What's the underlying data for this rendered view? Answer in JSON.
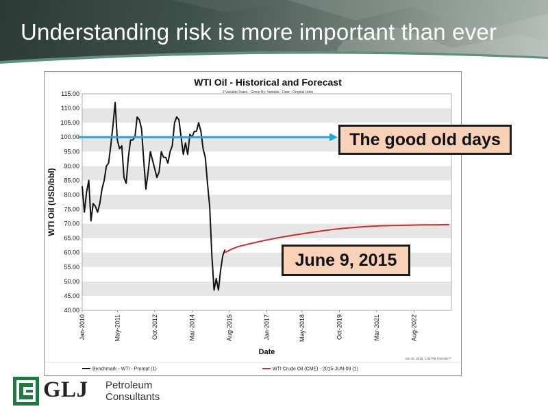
{
  "slide": {
    "title": "Understanding risk is more important than ever"
  },
  "colors": {
    "historical_line": "#111111",
    "forecast_line": "#d32a2a",
    "reference_arrow": "#1da7e6",
    "callout_fill": "#f9d1b7",
    "logo_green": "#1f7a42"
  },
  "callouts": {
    "good_old_days": "The good old days",
    "date": "June 9, 2015"
  },
  "logo": {
    "name": "GLJ",
    "line1": "Petroleum",
    "line2": "Consultants"
  },
  "chart_data": {
    "type": "line",
    "title": "WTI Oil - Historical and Forecast",
    "subtitle": "2 Variable Dates - Group By: Variable - Date - Original Units",
    "xlabel": "Date",
    "ylabel": "WTI Oil (USD/bbl)",
    "ylim": [
      40,
      115
    ],
    "yticks": [
      "40.00",
      "45.00",
      "50.00",
      "55.00",
      "60.00",
      "65.00",
      "70.00",
      "75.00",
      "80.00",
      "85.00",
      "90.00",
      "95.00",
      "100.00",
      "105.00",
      "110.00",
      "115.00"
    ],
    "xlim": [
      "2010-01",
      "2024-01"
    ],
    "xticks": [
      "Jan-2010",
      "May-2011",
      "Oct-2012",
      "Mar-2014",
      "Aug-2015",
      "Jan-2017",
      "May-2018",
      "Oct-2019",
      "Mar-2021",
      "Aug-2022"
    ],
    "grid": "alternating horizontal bands",
    "footnote": "Jun 16, 2015, 1:05 PM  VISAGE™",
    "reference_line": {
      "y": 100,
      "label": "The good old days"
    },
    "legend_position": "bottom",
    "series": [
      {
        "name": "Benchmark - WTI - Prompt  (1)",
        "points": [
          [
            "2010-01",
            83
          ],
          [
            "2010-02",
            74
          ],
          [
            "2010-03",
            81
          ],
          [
            "2010-04",
            85
          ],
          [
            "2010-05",
            71
          ],
          [
            "2010-06",
            77
          ],
          [
            "2010-07",
            76
          ],
          [
            "2010-08",
            74
          ],
          [
            "2010-09",
            77
          ],
          [
            "2010-10",
            82
          ],
          [
            "2010-11",
            85
          ],
          [
            "2010-12",
            90
          ],
          [
            "2011-01",
            91
          ],
          [
            "2011-02",
            97
          ],
          [
            "2011-03",
            104
          ],
          [
            "2011-04",
            112
          ],
          [
            "2011-05",
            99
          ],
          [
            "2011-06",
            96
          ],
          [
            "2011-07",
            97
          ],
          [
            "2011-08",
            86
          ],
          [
            "2011-09",
            84
          ],
          [
            "2011-10",
            93
          ],
          [
            "2011-11",
            99
          ],
          [
            "2011-12",
            99
          ],
          [
            "2012-01",
            100
          ],
          [
            "2012-02",
            107
          ],
          [
            "2012-03",
            106
          ],
          [
            "2012-04",
            103
          ],
          [
            "2012-05",
            92
          ],
          [
            "2012-06",
            82
          ],
          [
            "2012-07",
            88
          ],
          [
            "2012-08",
            95
          ],
          [
            "2012-09",
            92
          ],
          [
            "2012-10",
            89
          ],
          [
            "2012-11",
            86
          ],
          [
            "2012-12",
            88
          ],
          [
            "2013-01",
            95
          ],
          [
            "2013-02",
            93
          ],
          [
            "2013-03",
            93
          ],
          [
            "2013-04",
            91
          ],
          [
            "2013-05",
            95
          ],
          [
            "2013-06",
            97
          ],
          [
            "2013-07",
            105
          ],
          [
            "2013-08",
            107
          ],
          [
            "2013-09",
            106
          ],
          [
            "2013-10",
            100
          ],
          [
            "2013-11",
            94
          ],
          [
            "2013-12",
            98
          ],
          [
            "2014-01",
            94
          ],
          [
            "2014-02",
            101
          ],
          [
            "2014-03",
            100
          ],
          [
            "2014-04",
            102
          ],
          [
            "2014-05",
            102
          ],
          [
            "2014-06",
            105
          ],
          [
            "2014-07",
            102
          ],
          [
            "2014-08",
            96
          ],
          [
            "2014-09",
            93
          ],
          [
            "2014-10",
            84
          ],
          [
            "2014-11",
            76
          ],
          [
            "2014-12",
            59
          ],
          [
            "2015-01",
            47
          ],
          [
            "2015-02",
            51
          ],
          [
            "2015-03",
            47
          ],
          [
            "2015-04",
            54
          ],
          [
            "2015-05",
            59
          ],
          [
            "2015-06",
            61
          ]
        ]
      },
      {
        "name": "WTI Crude Oil (CME) - 2015-JUN-09  (1)",
        "points": [
          [
            "2015-06",
            60
          ],
          [
            "2015-09",
            61.2
          ],
          [
            "2015-12",
            62.1
          ],
          [
            "2016-06",
            63.2
          ],
          [
            "2016-12",
            64.2
          ],
          [
            "2017-06",
            65.1
          ],
          [
            "2017-12",
            65.9
          ],
          [
            "2018-06",
            66.6
          ],
          [
            "2018-12",
            67.3
          ],
          [
            "2019-06",
            67.9
          ],
          [
            "2019-12",
            68.4
          ],
          [
            "2020-06",
            68.8
          ],
          [
            "2020-12",
            69.1
          ],
          [
            "2021-06",
            69.3
          ],
          [
            "2021-12",
            69.4
          ],
          [
            "2022-06",
            69.5
          ],
          [
            "2022-12",
            69.6
          ],
          [
            "2023-06",
            69.6
          ],
          [
            "2023-12",
            69.7
          ]
        ]
      }
    ]
  }
}
